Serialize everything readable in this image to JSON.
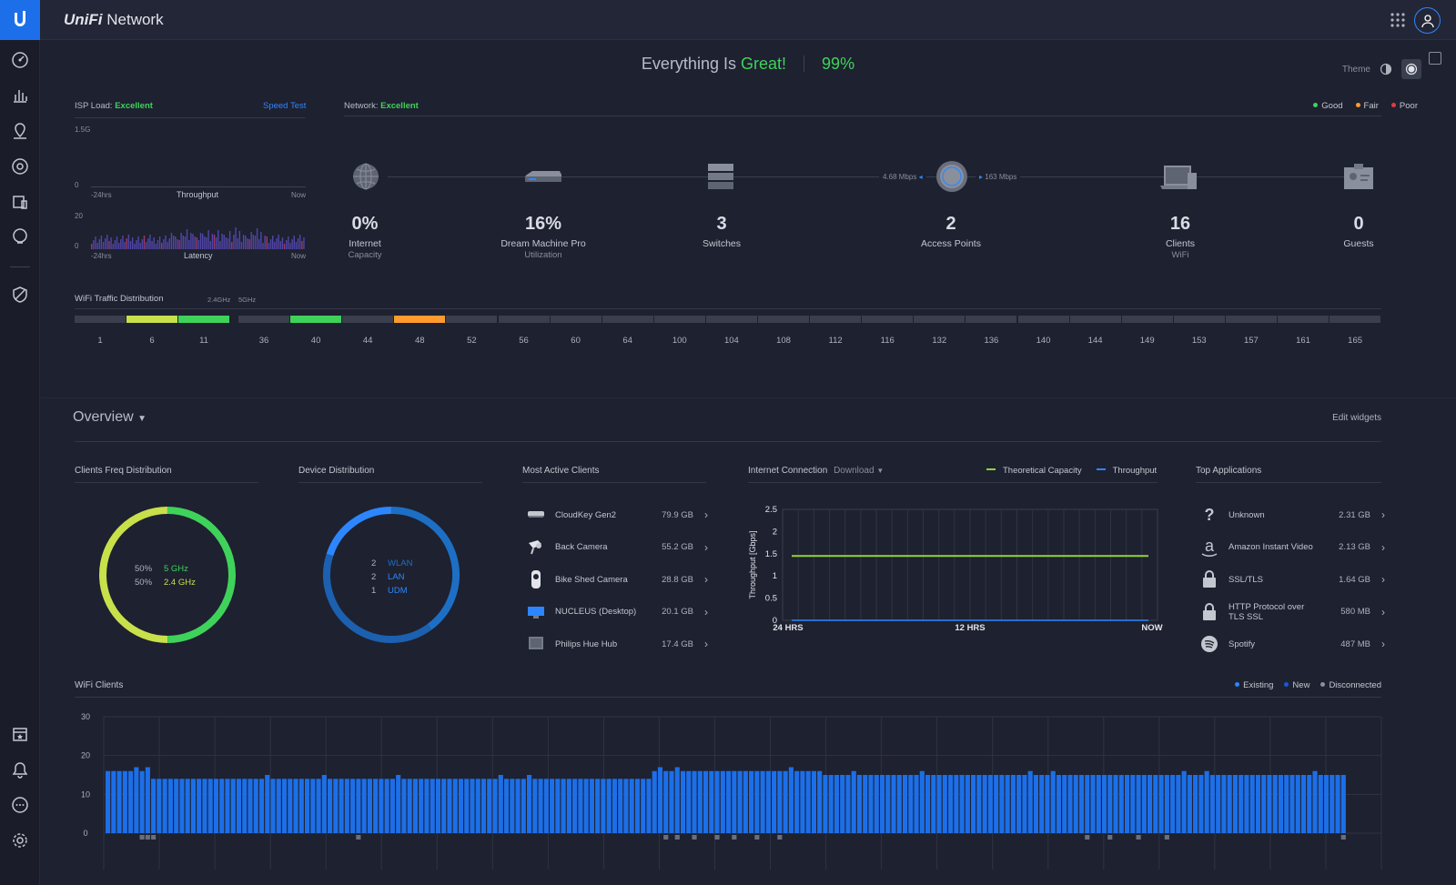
{
  "app": {
    "brand": "UniFi",
    "title": "Network"
  },
  "status": {
    "prefix": "Everything Is",
    "highlight": "Great!",
    "percent": "99%"
  },
  "theme": {
    "label": "Theme"
  },
  "legend_quality": [
    {
      "label": "Good",
      "color": "#3fd25a"
    },
    {
      "label": "Fair",
      "color": "#ff9a2e"
    },
    {
      "label": "Poor",
      "color": "#e33b3b"
    }
  ],
  "isp": {
    "label": "ISP Load:",
    "value": "Excellent",
    "speed_test": "Speed Test",
    "throughput": {
      "y_max": "1.5G",
      "y_min": "0",
      "x_start": "-24hrs",
      "x_label": "Throughput",
      "x_end": "Now"
    },
    "latency": {
      "y_max": "20",
      "y_min": "0",
      "x_start": "-24hrs",
      "x_label": "Latency",
      "x_end": "Now"
    }
  },
  "network": {
    "label": "Network:",
    "value": "Excellent",
    "down_rate": "4.68 Mbps",
    "up_rate": "163 Mbps"
  },
  "topology": [
    {
      "icon": "globe-icon",
      "value": "0%",
      "label": "Internet",
      "sub": "Capacity"
    },
    {
      "icon": "dream-machine-icon",
      "value": "16%",
      "label": "Dream Machine Pro",
      "sub": "Utilization"
    },
    {
      "icon": "switch-icon",
      "value": "3",
      "label": "Switches",
      "sub": ""
    },
    {
      "icon": "access-point-icon",
      "value": "2",
      "label": "Access Points",
      "sub": ""
    },
    {
      "icon": "laptop-icon",
      "value": "16",
      "label": "Clients",
      "sub": "WiFi"
    },
    {
      "icon": "guest-icon",
      "value": "0",
      "label": "Guests",
      "sub": ""
    }
  ],
  "wifi_traffic": {
    "title": "WiFi Traffic Distribution",
    "band_24": "2.4GHz",
    "band_5": "5GHz",
    "channels_24": [
      "1",
      "6",
      "11"
    ],
    "channels_5": [
      "36",
      "40",
      "44",
      "48",
      "52",
      "56",
      "60",
      "64",
      "100",
      "104",
      "108",
      "112",
      "116",
      "132",
      "136",
      "140",
      "144",
      "149",
      "153",
      "157",
      "161",
      "165"
    ],
    "active_24": [
      {
        "channel": "6",
        "level": "fair-green"
      },
      {
        "channel": "11",
        "level": "good"
      }
    ],
    "active_5": [
      {
        "channel": "40",
        "level": "good"
      },
      {
        "channel": "48",
        "level": "fair"
      }
    ]
  },
  "overview": {
    "title": "Overview",
    "edit": "Edit widgets"
  },
  "clients_freq": {
    "title": "Clients Freq Distribution",
    "items": [
      {
        "pct": "50%",
        "label": "5 GHz",
        "color": "#3fd25a"
      },
      {
        "pct": "50%",
        "label": "2.4 GHz",
        "color": "#c8e04a"
      }
    ]
  },
  "device_dist": {
    "title": "Device Distribution",
    "items": [
      {
        "count": "2",
        "label": "WLAN",
        "color": "#1c6fc4"
      },
      {
        "count": "2",
        "label": "LAN",
        "color": "#2d86ff"
      },
      {
        "count": "1",
        "label": "UDM",
        "color": "#2d86ff"
      }
    ]
  },
  "most_active": {
    "title": "Most Active Clients",
    "items": [
      {
        "icon": "cloudkey-icon",
        "name": "CloudKey Gen2",
        "value": "79.9 GB"
      },
      {
        "icon": "camera-icon",
        "name": "Back Camera",
        "value": "55.2 GB"
      },
      {
        "icon": "camera-g3-icon",
        "name": "Bike Shed Camera",
        "value": "28.8 GB"
      },
      {
        "icon": "desktop-icon",
        "name": "NUCLEUS (Desktop)",
        "value": "20.1 GB"
      },
      {
        "icon": "hub-icon",
        "name": "Philips Hue Hub",
        "value": "17.4 GB"
      }
    ]
  },
  "internet": {
    "title": "Internet Connection",
    "dropdown": "Download",
    "legend": [
      {
        "label": "Theoretical Capacity",
        "color": "#8fd43a"
      },
      {
        "label": "Throughput",
        "color": "#2d86ff"
      }
    ],
    "ylabel": "Throughput [Gbps]",
    "y_ticks": [
      "2.5",
      "2",
      "1.5",
      "1",
      "0.5",
      "0"
    ],
    "x_ticks": [
      "24 HRS",
      "12 HRS",
      "NOW"
    ]
  },
  "top_apps": {
    "title": "Top Applications",
    "items": [
      {
        "icon": "question-icon",
        "name": "Unknown",
        "value": "2.31 GB"
      },
      {
        "icon": "amazon-icon",
        "name": "Amazon Instant Video",
        "value": "2.13 GB"
      },
      {
        "icon": "lock-icon",
        "name": "SSL/TLS",
        "value": "1.64 GB"
      },
      {
        "icon": "lock-icon",
        "name": "HTTP Protocol over TLS SSL",
        "value": "580 MB"
      },
      {
        "icon": "spotify-icon",
        "name": "Spotify",
        "value": "487 MB"
      }
    ]
  },
  "wifi_clients": {
    "title": "WiFi Clients",
    "legend": [
      {
        "label": "Existing",
        "color": "#2d86ff"
      },
      {
        "label": "New",
        "color": "#1c55d8"
      },
      {
        "label": "Disconnected",
        "color": "#8a8f9c"
      }
    ],
    "y_ticks": [
      "30",
      "20",
      "10",
      "0"
    ]
  },
  "chart_data": [
    {
      "type": "line",
      "title": "Internet Connection",
      "ylabel": "Throughput [Gbps]",
      "x": [
        "24 HRS",
        "12 HRS",
        "NOW"
      ],
      "ylim": [
        0,
        2.5
      ],
      "grid": true,
      "legend": "top-right",
      "series": [
        {
          "name": "Theoretical Capacity",
          "values": [
            1.45,
            1.45,
            1.45
          ]
        },
        {
          "name": "Throughput",
          "values": [
            0,
            0,
            0
          ]
        }
      ]
    },
    {
      "type": "pie",
      "title": "Clients Freq Distribution",
      "categories": [
        "5 GHz",
        "2.4 GHz"
      ],
      "values": [
        50,
        50
      ]
    },
    {
      "type": "pie",
      "title": "Device Distribution",
      "categories": [
        "WLAN",
        "LAN",
        "UDM"
      ],
      "values": [
        2,
        2,
        1
      ]
    },
    {
      "type": "bar",
      "title": "WiFi Clients",
      "ylim": [
        0,
        30
      ],
      "series": [
        {
          "name": "Existing",
          "segments": [
            {
              "from": 0,
              "to": 8,
              "value": 16
            },
            {
              "from": 8,
              "to": 96,
              "value": 14
            },
            {
              "from": 96,
              "to": 126,
              "value": 16
            },
            {
              "from": 126,
              "to": 218,
              "value": 15
            }
          ]
        }
      ]
    }
  ]
}
